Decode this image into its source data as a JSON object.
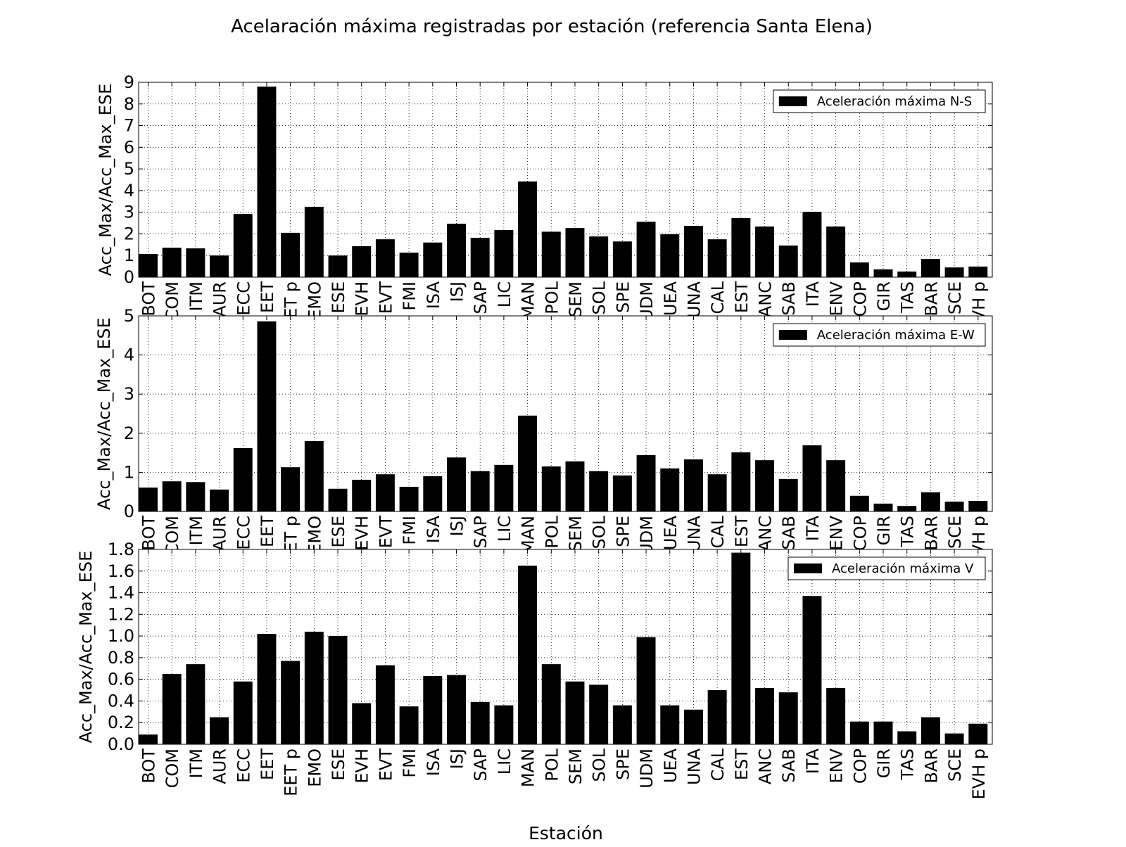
{
  "chart_data": {
    "type": "bar",
    "title": "Acelaración máxima registradas por estación (referencia Santa Elena)",
    "xlabel": "Estación",
    "categories": [
      "BOT",
      "COM",
      "ITM",
      "AUR",
      "ECC",
      "EET",
      "EET p",
      "EMO",
      "ESE",
      "EVH",
      "EVT",
      "FMI",
      "ISA",
      "ISJ",
      "SAP",
      "LIC",
      "MAN",
      "POL",
      "SEM",
      "SOL",
      "SPE",
      "UDM",
      "UEA",
      "UNA",
      "CAL",
      "EST",
      "ANC",
      "SAB",
      "ITA",
      "ENV",
      "COP",
      "GIR",
      "TAS",
      "BAR",
      "SCE",
      "EVH p"
    ],
    "grid": true,
    "bar_color": "#000000",
    "panels": [
      {
        "ylabel": "Acc_Max/Acc_Max_ESE",
        "legend": "Aceleración máxima N-S",
        "legend_position": "top-right",
        "ylim": [
          0,
          9
        ],
        "yticks": [
          0,
          1,
          2,
          3,
          4,
          5,
          6,
          7,
          8,
          9
        ],
        "tick_decimals": 0,
        "values": [
          1.07,
          1.36,
          1.33,
          1.0,
          2.92,
          8.8,
          2.05,
          3.25,
          1.0,
          1.43,
          1.75,
          1.13,
          1.6,
          2.47,
          1.82,
          2.18,
          4.42,
          2.1,
          2.27,
          1.88,
          1.65,
          2.56,
          1.98,
          2.37,
          1.75,
          2.73,
          2.34,
          1.46,
          3.02,
          2.34,
          0.68,
          0.36,
          0.26,
          0.84,
          0.45,
          0.49
        ]
      },
      {
        "ylabel": "Acc_Max/Acc_Max_ESE",
        "legend": "Aceleración máxima E-W",
        "legend_position": "top-right",
        "ylim": [
          0,
          5
        ],
        "yticks": [
          0,
          1,
          2,
          3,
          4,
          5
        ],
        "tick_decimals": 0,
        "values": [
          0.61,
          0.77,
          0.75,
          0.56,
          1.62,
          4.86,
          1.13,
          1.8,
          0.58,
          0.81,
          0.95,
          0.63,
          0.9,
          1.38,
          1.03,
          1.19,
          2.45,
          1.15,
          1.28,
          1.03,
          0.92,
          1.44,
          1.1,
          1.33,
          0.95,
          1.51,
          1.31,
          0.83,
          1.69,
          1.31,
          0.4,
          0.2,
          0.14,
          0.49,
          0.25,
          0.27
        ]
      },
      {
        "ylabel": "Acc_Max/Acc_Max_ESE",
        "legend": "Aceleración máxima V",
        "legend_position": "top-right",
        "ylim": [
          0,
          1.8
        ],
        "yticks": [
          0,
          0.2,
          0.4,
          0.6,
          0.8,
          1.0,
          1.2,
          1.4,
          1.6,
          1.8
        ],
        "tick_decimals": 1,
        "values": [
          0.09,
          0.65,
          0.74,
          0.25,
          0.58,
          1.02,
          0.77,
          1.04,
          1.0,
          0.38,
          0.73,
          0.35,
          0.63,
          0.64,
          0.39,
          0.36,
          1.65,
          0.74,
          0.58,
          0.55,
          0.36,
          0.99,
          0.36,
          0.32,
          0.5,
          1.77,
          0.52,
          0.48,
          1.37,
          0.52,
          0.21,
          0.21,
          0.12,
          0.25,
          0.1,
          0.19
        ]
      }
    ]
  }
}
